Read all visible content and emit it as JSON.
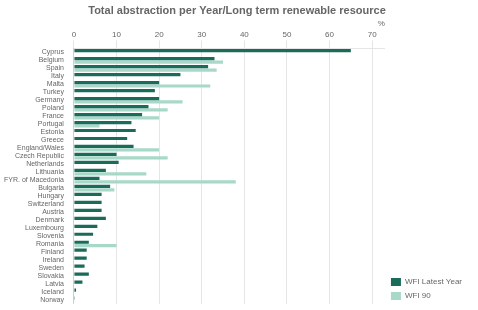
{
  "chart_data": {
    "type": "bar",
    "orientation": "horizontal",
    "title": "Total abstraction per Year/Long term renewable resource",
    "xlabel": "%",
    "categories": [
      "Cyprus",
      "Belgium",
      "Spain",
      "Italy",
      "Malta",
      "Turkey",
      "Germany",
      "Poland",
      "France",
      "Portugal",
      "Estonia",
      "Greece",
      "England/Wales",
      "Czech Republic",
      "Netherlands",
      "Lithuania",
      "FYR. of Macedonia",
      "Bulgaria",
      "Hungary",
      "Switzerland",
      "Austria",
      "Denmark",
      "Luxembourg",
      "Slovenia",
      "Romania",
      "Finland",
      "Ireland",
      "Sweden",
      "Slovakia",
      "Latvia",
      "Iceland",
      "Norway"
    ],
    "series": [
      {
        "name": "WFI Latest Year",
        "color": "#1a6b5a",
        "values": [
          65.0,
          33.0,
          31.5,
          25.0,
          20.0,
          19.0,
          20.0,
          17.5,
          16.0,
          13.5,
          14.5,
          12.5,
          14.0,
          10.0,
          10.5,
          7.5,
          6.0,
          8.5,
          6.5,
          6.5,
          6.5,
          7.5,
          5.5,
          4.5,
          3.5,
          3.0,
          3.0,
          2.5,
          3.5,
          2.0,
          0.5,
          0.2
        ]
      },
      {
        "name": "WFI 90",
        "color": "#a8d8c8",
        "values": [
          0,
          35.0,
          33.5,
          0,
          32.0,
          0,
          25.5,
          22.0,
          20.0,
          6.0,
          0,
          0,
          20.0,
          22.0,
          0,
          17.0,
          38.0,
          9.5,
          0,
          0,
          0,
          0,
          0,
          0,
          10.0,
          0,
          0,
          0,
          0,
          0,
          0,
          0
        ]
      }
    ],
    "xlim": [
      0,
      73
    ],
    "xticks": [
      0,
      10,
      20,
      30,
      40,
      50,
      60,
      70
    ],
    "grid": true,
    "legend": "lower right"
  }
}
